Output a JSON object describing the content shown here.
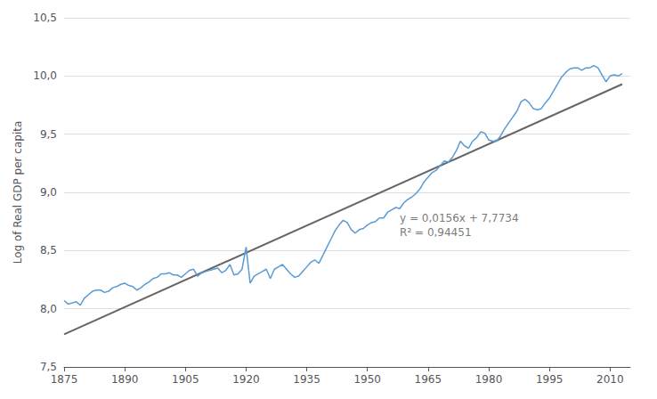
{
  "chart_data": {
    "type": "line",
    "ylabel": "Log of Real GDP per capita",
    "x": [
      1875,
      1876,
      1877,
      1878,
      1879,
      1880,
      1881,
      1882,
      1883,
      1884,
      1885,
      1886,
      1887,
      1888,
      1889,
      1890,
      1891,
      1892,
      1893,
      1894,
      1895,
      1896,
      1897,
      1898,
      1899,
      1900,
      1901,
      1902,
      1903,
      1904,
      1905,
      1906,
      1907,
      1908,
      1909,
      1910,
      1911,
      1912,
      1913,
      1914,
      1915,
      1916,
      1917,
      1918,
      1919,
      1920,
      1921,
      1922,
      1923,
      1924,
      1925,
      1926,
      1927,
      1928,
      1929,
      1930,
      1931,
      1932,
      1933,
      1934,
      1935,
      1936,
      1937,
      1938,
      1939,
      1940,
      1941,
      1942,
      1943,
      1944,
      1945,
      1946,
      1947,
      1948,
      1949,
      1950,
      1951,
      1952,
      1953,
      1954,
      1955,
      1956,
      1957,
      1958,
      1959,
      1960,
      1961,
      1962,
      1963,
      1964,
      1965,
      1966,
      1967,
      1968,
      1969,
      1970,
      1971,
      1972,
      1973,
      1974,
      1975,
      1976,
      1977,
      1978,
      1979,
      1980,
      1981,
      1982,
      1983,
      1984,
      1985,
      1986,
      1987,
      1988,
      1989,
      1990,
      1991,
      1992,
      1993,
      1994,
      1995,
      1996,
      1997,
      1998,
      1999,
      2000,
      2001,
      2002,
      2003,
      2004,
      2005,
      2006,
      2007,
      2008,
      2009,
      2010,
      2011,
      2012,
      2013
    ],
    "series": [
      {
        "type": "line",
        "color": "#5B9BD5",
        "values": [
          8.07,
          8.04,
          8.05,
          8.06,
          8.03,
          8.09,
          8.12,
          8.15,
          8.16,
          8.16,
          8.14,
          8.15,
          8.18,
          8.19,
          8.21,
          8.22,
          8.2,
          8.19,
          8.16,
          8.18,
          8.21,
          8.23,
          8.26,
          8.27,
          8.3,
          8.3,
          8.31,
          8.29,
          8.29,
          8.27,
          8.3,
          8.33,
          8.34,
          8.28,
          8.31,
          8.32,
          8.33,
          8.34,
          8.35,
          8.31,
          8.33,
          8.38,
          8.29,
          8.3,
          8.34,
          8.53,
          8.22,
          8.28,
          8.3,
          8.32,
          8.34,
          8.26,
          8.34,
          8.36,
          8.38,
          8.34,
          8.3,
          8.27,
          8.28,
          8.32,
          8.36,
          8.4,
          8.42,
          8.39,
          8.46,
          8.53,
          8.6,
          8.67,
          8.72,
          8.76,
          8.74,
          8.68,
          8.65,
          8.68,
          8.69,
          8.72,
          8.74,
          8.75,
          8.78,
          8.78,
          8.83,
          8.85,
          8.87,
          8.86,
          8.91,
          8.94,
          8.96,
          8.99,
          9.03,
          9.09,
          9.13,
          9.17,
          9.19,
          9.23,
          9.27,
          9.26,
          9.3,
          9.36,
          9.44,
          9.4,
          9.38,
          9.44,
          9.47,
          9.52,
          9.51,
          9.45,
          9.44,
          9.44,
          9.49,
          9.55,
          9.6,
          9.65,
          9.7,
          9.78,
          9.8,
          9.77,
          9.72,
          9.71,
          9.72,
          9.77,
          9.81,
          9.87,
          9.93,
          9.99,
          10.03,
          10.06,
          10.07,
          10.07,
          10.05,
          10.07,
          10.07,
          10.09,
          10.07,
          10.01,
          9.95,
          10.0,
          10.01,
          10.0,
          10.02
        ]
      },
      {
        "type": "line",
        "color": "#666666",
        "x": [
          1875,
          2013
        ],
        "values": [
          7.78,
          9.93
        ]
      }
    ],
    "xlim": [
      1875,
      2015
    ],
    "ylim": [
      7.5,
      10.5
    ],
    "xticks": [
      1875,
      1890,
      1905,
      1920,
      1935,
      1950,
      1965,
      1980,
      1995,
      2010
    ],
    "yticks": [
      {
        "value": 7.5,
        "label": "7,5"
      },
      {
        "value": 8.0,
        "label": "8,0"
      },
      {
        "value": 8.5,
        "label": "8,5"
      },
      {
        "value": 9.0,
        "label": "9,0"
      },
      {
        "value": 9.5,
        "label": "9,5"
      },
      {
        "value": 10.0,
        "label": "10,0"
      },
      {
        "value": 10.5,
        "label": "10,5"
      }
    ],
    "grid": true,
    "annotations": [
      {
        "text": "y = 0,0156x + 7,7734\nR² = 0,94451",
        "x": 1958,
        "y": 8.72
      }
    ]
  }
}
